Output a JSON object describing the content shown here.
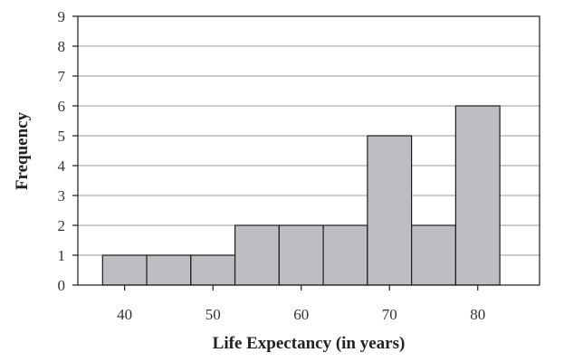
{
  "chart_data": {
    "type": "bar",
    "title": "",
    "xlabel": "Life Expectancy (in years)",
    "ylabel": "Frequency",
    "bin_width": 5,
    "bins": [
      {
        "from": 37.5,
        "to": 42.5,
        "count": 1
      },
      {
        "from": 42.5,
        "to": 47.5,
        "count": 1
      },
      {
        "from": 47.5,
        "to": 52.5,
        "count": 1
      },
      {
        "from": 52.5,
        "to": 57.5,
        "count": 2
      },
      {
        "from": 57.5,
        "to": 62.5,
        "count": 2
      },
      {
        "from": 62.5,
        "to": 67.5,
        "count": 2
      },
      {
        "from": 67.5,
        "to": 72.5,
        "count": 5
      },
      {
        "from": 72.5,
        "to": 77.5,
        "count": 2
      },
      {
        "from": 77.5,
        "to": 82.5,
        "count": 6
      }
    ],
    "xlim": [
      34.7,
      87
    ],
    "ylim": [
      0,
      9
    ],
    "xticks": [
      40,
      50,
      60,
      70,
      80
    ],
    "yticks": [
      0,
      1,
      2,
      3,
      4,
      5,
      6,
      7,
      8,
      9
    ],
    "grid": "horizontal",
    "colors": {
      "bar_fill": "#bdbec1",
      "bar_edge": "#1c1c1c",
      "grid": "#9a9a9a"
    }
  }
}
